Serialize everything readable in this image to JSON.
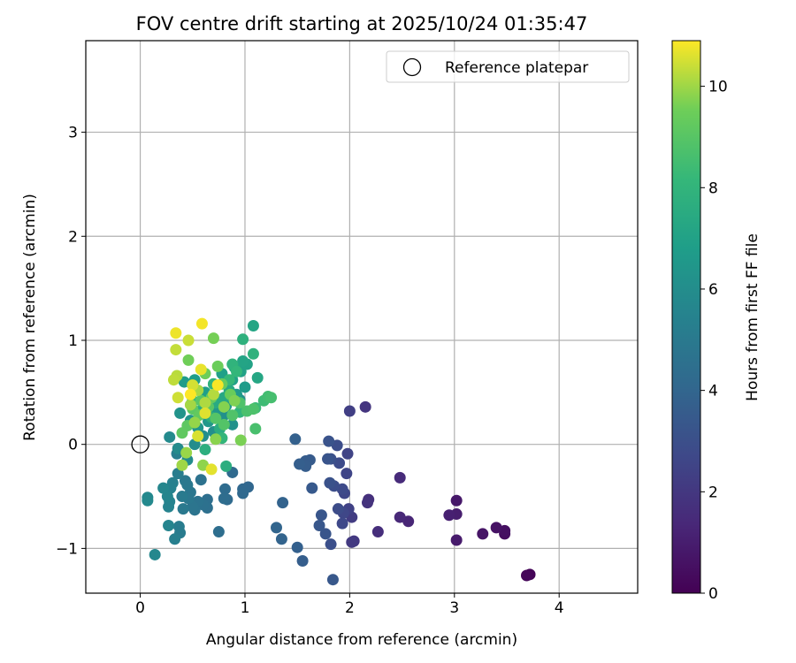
{
  "chart_data": {
    "type": "scatter",
    "title": "FOV centre drift starting at 2025/10/24 01:35:47",
    "xlabel": "Angular distance from reference (arcmin)",
    "ylabel": "Rotation from reference (arcmin)",
    "xlim": [
      -0.52,
      4.75
    ],
    "ylim": [
      -1.43,
      3.88
    ],
    "xticks": [
      0,
      1,
      2,
      3,
      4
    ],
    "yticks": [
      -1,
      0,
      1,
      2,
      3
    ],
    "grid": true,
    "legend": {
      "placement": "top-right",
      "entries": [
        {
          "label": "Reference platepar",
          "marker": "open-circle"
        }
      ]
    },
    "reference_point": {
      "x": 0,
      "y": 0
    },
    "colorbar": {
      "label": "Hours from first FF file",
      "colormap": "viridis",
      "range": [
        0,
        10.9
      ],
      "ticks": [
        0,
        2,
        4,
        6,
        8,
        10
      ]
    },
    "points": [
      [
        3.72,
        -1.25,
        0.1
      ],
      [
        3.69,
        -1.26,
        0.2
      ],
      [
        3.48,
        -0.86,
        0.4
      ],
      [
        3.48,
        -0.83,
        0.5
      ],
      [
        3.4,
        -0.8,
        0.6
      ],
      [
        3.27,
        -0.86,
        0.7
      ],
      [
        3.02,
        -0.54,
        0.8
      ],
      [
        3.02,
        -0.92,
        0.9
      ],
      [
        3.02,
        -0.67,
        1.0
      ],
      [
        2.95,
        -0.68,
        1.1
      ],
      [
        2.56,
        -0.74,
        1.3
      ],
      [
        2.48,
        -0.7,
        1.4
      ],
      [
        2.48,
        -0.32,
        1.5
      ],
      [
        2.27,
        -0.84,
        1.6
      ],
      [
        2.18,
        -0.53,
        1.7
      ],
      [
        2.17,
        -0.56,
        1.8
      ],
      [
        2.15,
        0.36,
        1.9
      ],
      [
        2.04,
        -0.93,
        2.0
      ],
      [
        2.02,
        -0.94,
        2.1
      ],
      [
        2.02,
        -0.7,
        2.2
      ],
      [
        2.0,
        0.32,
        2.3
      ],
      [
        1.99,
        -0.62,
        2.4
      ],
      [
        1.98,
        -0.09,
        2.5
      ],
      [
        1.97,
        -0.28,
        2.55
      ],
      [
        1.95,
        -0.47,
        2.6
      ],
      [
        1.94,
        -0.66,
        2.65
      ],
      [
        1.93,
        -0.76,
        2.7
      ],
      [
        1.93,
        -0.43,
        2.75
      ],
      [
        1.9,
        -0.18,
        2.8
      ],
      [
        1.89,
        -0.62,
        2.85
      ],
      [
        1.88,
        -0.01,
        2.9
      ],
      [
        1.85,
        -0.4,
        2.95
      ],
      [
        1.82,
        -0.96,
        3.0
      ],
      [
        1.82,
        -0.14,
        3.05
      ],
      [
        1.81,
        -0.37,
        3.1
      ],
      [
        1.8,
        0.03,
        3.15
      ],
      [
        1.79,
        -0.14,
        3.2
      ],
      [
        1.77,
        -0.86,
        3.25
      ],
      [
        1.73,
        -0.68,
        3.3
      ],
      [
        1.71,
        -0.78,
        3.35
      ],
      [
        1.84,
        -1.3,
        3.4
      ],
      [
        1.64,
        -0.42,
        3.45
      ],
      [
        1.62,
        -0.15,
        3.5
      ],
      [
        1.58,
        -0.16,
        3.55
      ],
      [
        1.58,
        -0.21,
        3.6
      ],
      [
        1.55,
        -1.12,
        3.65
      ],
      [
        1.52,
        -0.19,
        3.7
      ],
      [
        1.5,
        -0.99,
        3.75
      ],
      [
        1.48,
        0.05,
        3.8
      ],
      [
        1.36,
        -0.56,
        3.85
      ],
      [
        1.35,
        -0.91,
        3.9
      ],
      [
        1.3,
        -0.8,
        3.95
      ],
      [
        1.03,
        -0.41,
        4.05
      ],
      [
        0.98,
        -0.43,
        4.1
      ],
      [
        0.98,
        -0.47,
        4.15
      ],
      [
        0.88,
        -0.27,
        4.2
      ],
      [
        0.83,
        -0.53,
        4.25
      ],
      [
        0.81,
        -0.43,
        4.3
      ],
      [
        0.8,
        -0.52,
        4.35
      ],
      [
        0.75,
        -0.84,
        4.4
      ],
      [
        0.64,
        -0.53,
        4.45
      ],
      [
        0.64,
        -0.61,
        4.5
      ],
      [
        0.6,
        -0.58,
        4.55
      ],
      [
        0.58,
        -0.34,
        4.6
      ],
      [
        0.55,
        -0.55,
        4.65
      ],
      [
        0.52,
        -0.63,
        4.7
      ],
      [
        0.5,
        -0.6,
        4.75
      ],
      [
        0.48,
        -0.46,
        4.8
      ],
      [
        0.46,
        -0.52,
        4.85
      ],
      [
        0.45,
        -0.39,
        4.9
      ],
      [
        0.43,
        -0.35,
        4.95
      ],
      [
        0.41,
        -0.62,
        5.0
      ],
      [
        0.4,
        -0.5,
        5.05
      ],
      [
        0.38,
        -0.85,
        5.1
      ],
      [
        0.37,
        -0.79,
        5.15
      ],
      [
        0.36,
        -0.28,
        5.2
      ],
      [
        0.35,
        -0.09,
        5.25
      ],
      [
        0.33,
        -0.91,
        5.3
      ],
      [
        0.31,
        -0.37,
        5.35
      ],
      [
        0.29,
        -0.42,
        5.4
      ],
      [
        0.28,
        -0.55,
        5.45
      ],
      [
        0.27,
        -0.6,
        5.5
      ],
      [
        0.27,
        -0.78,
        5.55
      ],
      [
        0.26,
        -0.5,
        5.6
      ],
      [
        0.22,
        -0.42,
        5.65
      ],
      [
        0.14,
        -1.06,
        5.7
      ],
      [
        0.07,
        -0.51,
        5.75
      ],
      [
        0.07,
        -0.54,
        5.8
      ],
      [
        0.28,
        0.07,
        5.85
      ],
      [
        0.36,
        -0.04,
        5.9
      ],
      [
        0.45,
        -0.15,
        5.95
      ],
      [
        0.52,
        0.0,
        6.0
      ],
      [
        0.6,
        0.08,
        6.05
      ],
      [
        0.7,
        0.12,
        6.1
      ],
      [
        0.8,
        0.28,
        6.15
      ],
      [
        0.88,
        0.19,
        6.2
      ],
      [
        0.95,
        0.43,
        6.25
      ],
      [
        0.38,
        0.3,
        6.3
      ],
      [
        0.48,
        0.23,
        6.35
      ],
      [
        0.55,
        0.16,
        6.4
      ],
      [
        0.65,
        0.22,
        6.45
      ],
      [
        0.72,
        0.31,
        6.5
      ],
      [
        0.82,
        0.37,
        6.55
      ],
      [
        0.92,
        0.48,
        6.6
      ],
      [
        1.0,
        0.55,
        6.65
      ],
      [
        0.42,
        0.6,
        6.7
      ],
      [
        0.52,
        0.62,
        6.75
      ],
      [
        0.62,
        0.5,
        6.8
      ],
      [
        0.7,
        0.58,
        6.85
      ],
      [
        0.78,
        0.68,
        6.9
      ],
      [
        0.88,
        0.62,
        6.95
      ],
      [
        0.96,
        0.7,
        7.0
      ],
      [
        1.02,
        0.77,
        7.05
      ],
      [
        0.98,
        0.8,
        7.15
      ],
      [
        1.08,
        1.14,
        7.2
      ],
      [
        1.12,
        0.64,
        7.25
      ],
      [
        0.9,
        0.74,
        7.3
      ],
      [
        0.8,
        0.45,
        7.35
      ],
      [
        0.85,
        0.52,
        7.4
      ],
      [
        0.72,
        0.4,
        7.45
      ],
      [
        0.6,
        0.35,
        7.5
      ],
      [
        0.68,
        0.26,
        7.55
      ],
      [
        0.76,
        0.15,
        7.6
      ],
      [
        0.82,
        -0.21,
        7.65
      ],
      [
        0.62,
        -0.05,
        7.7
      ],
      [
        0.98,
        1.01,
        7.8
      ],
      [
        1.08,
        0.87,
        7.85
      ],
      [
        0.7,
        0.58,
        7.9
      ],
      [
        0.88,
        0.77,
        7.95
      ],
      [
        0.95,
        0.31,
        8.0
      ],
      [
        0.78,
        0.06,
        8.05
      ],
      [
        0.92,
        0.7,
        8.1
      ],
      [
        0.5,
        0.42,
        8.15
      ],
      [
        0.85,
        0.62,
        8.2
      ],
      [
        1.1,
        0.35,
        8.3
      ],
      [
        1.18,
        0.42,
        8.4
      ],
      [
        1.22,
        0.46,
        8.5
      ],
      [
        1.25,
        0.45,
        8.6
      ],
      [
        1.1,
        0.15,
        8.65
      ],
      [
        1.02,
        0.32,
        8.7
      ],
      [
        1.08,
        0.34,
        8.75
      ],
      [
        0.95,
        0.4,
        8.8
      ],
      [
        0.88,
        0.28,
        8.85
      ],
      [
        0.8,
        0.19,
        8.9
      ],
      [
        0.72,
        0.25,
        8.95
      ],
      [
        0.65,
        0.36,
        9.0
      ],
      [
        0.58,
        0.42,
        9.05
      ],
      [
        0.5,
        0.34,
        9.1
      ],
      [
        0.45,
        0.18,
        9.15
      ],
      [
        0.4,
        0.11,
        9.2
      ],
      [
        0.56,
        0.28,
        9.25
      ],
      [
        0.68,
        0.45,
        9.3
      ],
      [
        0.78,
        0.58,
        9.35
      ],
      [
        0.86,
        0.48,
        9.4
      ],
      [
        0.74,
        0.75,
        9.45
      ],
      [
        0.62,
        0.68,
        9.5
      ],
      [
        0.46,
        0.81,
        9.55
      ],
      [
        0.7,
        1.02,
        9.6
      ],
      [
        0.96,
        0.04,
        9.65
      ],
      [
        0.9,
        0.42,
        9.7
      ],
      [
        0.8,
        0.36,
        9.75
      ],
      [
        0.72,
        0.05,
        9.8
      ],
      [
        0.6,
        -0.2,
        9.85
      ],
      [
        0.52,
        0.21,
        9.9
      ],
      [
        0.44,
        -0.08,
        9.95
      ],
      [
        0.4,
        -0.2,
        10.0
      ],
      [
        0.48,
        0.38,
        10.05
      ],
      [
        0.55,
        0.52,
        10.1
      ],
      [
        0.62,
        0.4,
        10.15
      ],
      [
        0.7,
        0.48,
        10.2
      ],
      [
        0.35,
        0.66,
        10.25
      ],
      [
        0.32,
        0.62,
        10.3
      ],
      [
        0.34,
        0.91,
        10.35
      ],
      [
        0.46,
        1.0,
        10.4
      ],
      [
        0.36,
        0.45,
        10.45
      ],
      [
        0.5,
        0.57,
        10.5
      ],
      [
        0.55,
        0.08,
        10.55
      ],
      [
        0.62,
        0.3,
        10.6
      ],
      [
        0.68,
        -0.24,
        10.65
      ],
      [
        0.58,
        0.72,
        10.7
      ],
      [
        0.34,
        1.07,
        10.75
      ],
      [
        0.59,
        1.16,
        10.8
      ],
      [
        0.74,
        0.57,
        10.85
      ],
      [
        0.48,
        0.48,
        10.9
      ]
    ]
  }
}
